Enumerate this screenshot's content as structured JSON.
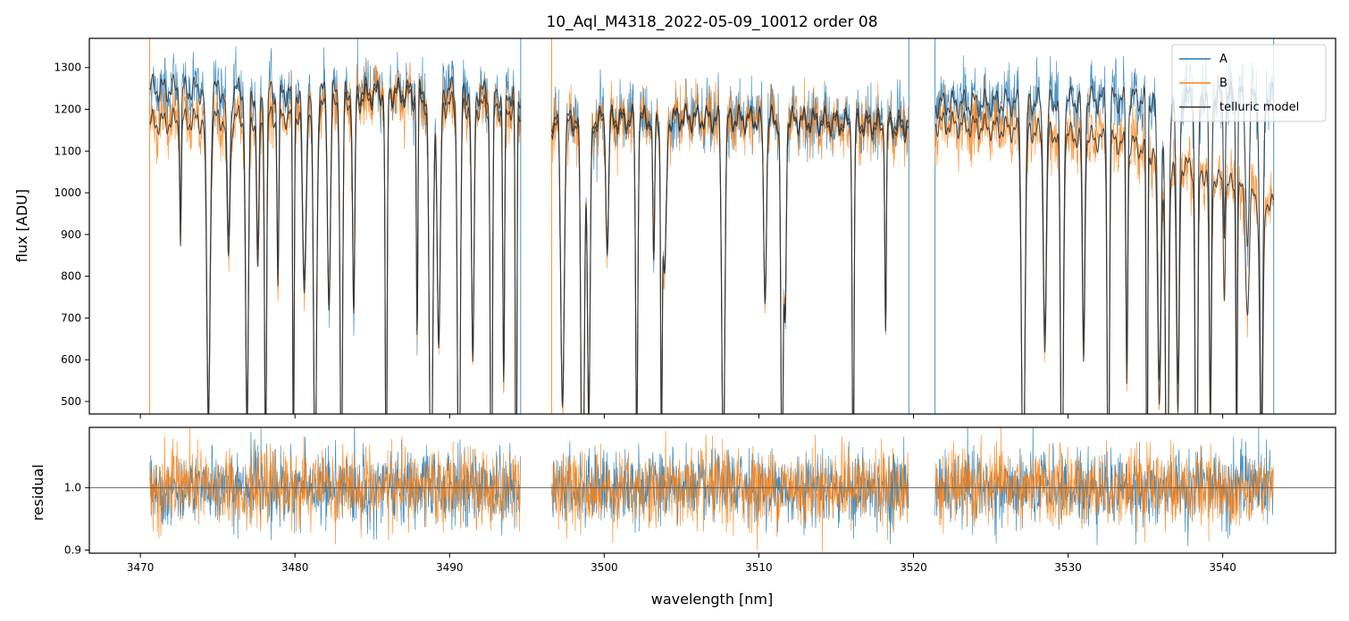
{
  "chart_data": [
    {
      "type": "line",
      "panel": "top",
      "title": "10_Aql_M4318_2022-05-09_10012  order 08",
      "xlabel": "",
      "ylabel": "flux [ADU]",
      "xlim": [
        3466.7,
        3547.3
      ],
      "ylim": [
        470,
        1370
      ],
      "yticks": [
        500,
        600,
        700,
        800,
        900,
        1000,
        1100,
        1200,
        1300
      ],
      "xticks": [
        3470,
        3480,
        3490,
        3500,
        3510,
        3520,
        3530,
        3540
      ],
      "grid": false,
      "legend": "top-right",
      "segments": [
        [
          3470.6,
          3494.6
        ],
        [
          3496.6,
          3519.7
        ],
        [
          3521.4,
          3543.3
        ]
      ],
      "absorption_lines": [
        3472.6,
        3474.4,
        3475.7,
        3476.9,
        3477.6,
        3478.1,
        3478.9,
        3479.9,
        3480.6,
        3481.3,
        3482.2,
        3483.0,
        3483.8,
        3485.9,
        3487.9,
        3488.8,
        3489.3,
        3490.6,
        3491.5,
        3492.7,
        3493.5,
        3494.3,
        3497.3,
        3498.6,
        3499.0,
        3500.2,
        3502.1,
        3503.2,
        3503.7,
        3503.9,
        3507.7,
        3510.4,
        3511.5,
        3511.7,
        3516.1,
        3518.2,
        3527.1,
        3528.5,
        3529.6,
        3531.0,
        3532.6,
        3533.8,
        3535.1,
        3535.9,
        3536.4,
        3537.1,
        3538.3,
        3539.2,
        3540.1,
        3540.9,
        3541.6,
        3542.5
      ],
      "series": [
        {
          "name": "A",
          "color": "#1f77b4",
          "continuum": [
            [
              3470.6,
              1285
            ],
            [
              3480,
              1275
            ],
            [
              3490,
              1280
            ],
            [
              3494.6,
              1270
            ],
            [
              3496.6,
              1210
            ],
            [
              3505,
              1215
            ],
            [
              3512,
              1210
            ],
            [
              3519.7,
              1200
            ],
            [
              3521.4,
              1245
            ],
            [
              3530,
              1255
            ],
            [
              3538,
              1265
            ],
            [
              3543.3,
              1270
            ]
          ],
          "noise": 30
        },
        {
          "name": "B",
          "color": "#ff7f0e",
          "continuum": [
            [
              3470.6,
              1200
            ],
            [
              3480,
              1220
            ],
            [
              3486,
              1275
            ],
            [
              3490,
              1245
            ],
            [
              3494.6,
              1235
            ],
            [
              3496.6,
              1195
            ],
            [
              3505,
              1210
            ],
            [
              3512,
              1205
            ],
            [
              3519.7,
              1185
            ],
            [
              3521.4,
              1200
            ],
            [
              3528,
              1180
            ],
            [
              3534,
              1150
            ],
            [
              3538,
              1090
            ],
            [
              3543.3,
              1000
            ]
          ],
          "noise": 30
        },
        {
          "name": "telluric model",
          "color": "#333333"
        }
      ]
    },
    {
      "type": "line",
      "panel": "bottom",
      "xlabel": "wavelength [nm]",
      "ylabel": "residual",
      "xlim": [
        3466.7,
        3547.3
      ],
      "ylim": [
        0.895,
        1.097
      ],
      "yticks": [
        0.9,
        1.0
      ],
      "ytick_labels": [
        "0.9",
        "1.0"
      ],
      "xticks": [
        3470,
        3480,
        3490,
        3500,
        3510,
        3520,
        3530,
        3540
      ],
      "reference_line": 1.0,
      "series": [
        {
          "name": "A",
          "color": "#1f77b4",
          "sigma": 0.03
        },
        {
          "name": "B",
          "color": "#ff7f0e",
          "sigma": 0.03
        }
      ]
    }
  ]
}
